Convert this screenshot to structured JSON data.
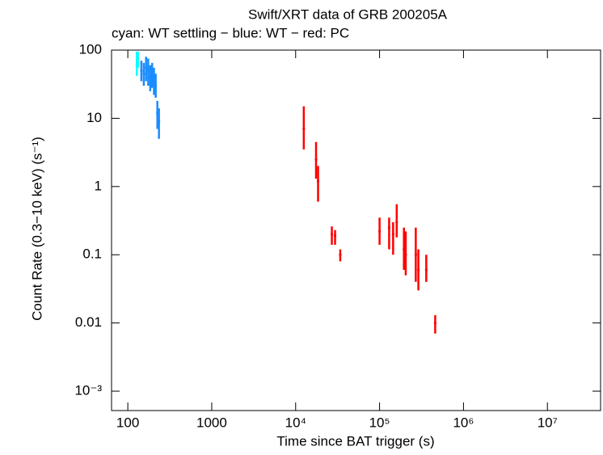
{
  "chart_data": {
    "type": "errorbar",
    "title": "Swift/XRT data of GRB 200205A",
    "subtitle": "cyan: WT settling − blue: WT − red: PC",
    "x_label": "Time since BAT trigger (s)",
    "y_label": "Count Rate (0.3−10 keV) (s⁻¹)",
    "xlog": true,
    "ylog": true,
    "xlim": [
      64,
      43000000
    ],
    "ylim": [
      0.00052,
      100
    ],
    "xticks": [
      100,
      1000,
      {
        "value": 10000,
        "label": "10⁴"
      },
      {
        "value": 100000,
        "label": "10⁵"
      },
      {
        "value": 1000000,
        "label": "10⁶"
      },
      {
        "value": 10000000,
        "label": "10⁷"
      }
    ],
    "yticks": [
      100,
      10,
      1,
      0.1,
      0.01,
      {
        "value": 0.001,
        "label": "10⁻³"
      }
    ],
    "series": [
      {
        "color": "#00ffff",
        "x": [
          128,
          132
        ],
        "values": [
          60,
          75
        ],
        "y_lower": [
          42,
          55
        ],
        "y_upper": [
          95,
          95
        ]
      },
      {
        "color": "#1a8cff",
        "x": [
          145,
          155,
          165,
          175,
          185,
          195,
          205,
          215,
          225,
          235
        ],
        "values": [
          50,
          45,
          55,
          50,
          40,
          45,
          35,
          30,
          12,
          9
        ],
        "y_lower": [
          35,
          30,
          35,
          30,
          25,
          28,
          22,
          20,
          7,
          5
        ],
        "y_upper": [
          70,
          65,
          80,
          75,
          60,
          65,
          55,
          45,
          18,
          14
        ]
      },
      {
        "color": "#ff0000",
        "x": [
          12500,
          17500,
          18500,
          27000,
          29500,
          34000,
          100000,
          130000,
          145000,
          160000,
          195000,
          205000,
          270000,
          290000,
          360000,
          460000
        ],
        "values": [
          7,
          2.5,
          1.2,
          0.2,
          0.19,
          0.1,
          0.22,
          0.25,
          0.2,
          0.3,
          0.12,
          0.1,
          0.1,
          0.06,
          0.06,
          0.01
        ],
        "y_lower": [
          3.5,
          1.3,
          0.6,
          0.14,
          0.14,
          0.08,
          0.14,
          0.12,
          0.1,
          0.18,
          0.06,
          0.05,
          0.04,
          0.03,
          0.04,
          0.007
        ],
        "y_upper": [
          15,
          4.5,
          2.0,
          0.26,
          0.23,
          0.12,
          0.35,
          0.35,
          0.3,
          0.55,
          0.25,
          0.22,
          0.25,
          0.12,
          0.1,
          0.013
        ]
      }
    ]
  }
}
